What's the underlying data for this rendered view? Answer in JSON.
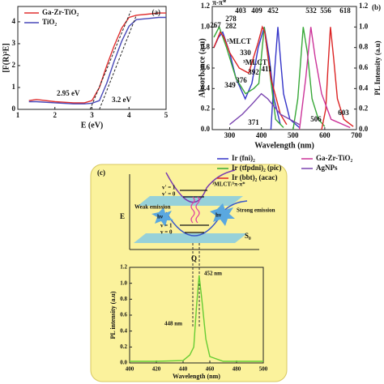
{
  "chart_data": [
    {
      "type": "line",
      "title": "(a)",
      "xlabel": "E (eV)",
      "ylabel": "[F(R)²E]",
      "xlim": [
        1,
        5
      ],
      "ylim": [
        0,
        4.7
      ],
      "xticks": [
        1,
        2,
        3,
        4,
        5
      ],
      "yticks": [
        0,
        1,
        2,
        3,
        4
      ],
      "legend": "upper left",
      "series": [
        {
          "name": "Ga-Zr-TiO₂",
          "color": "#e03030",
          "x": [
            1.3,
            1.5,
            2,
            2.5,
            2.8,
            3.0,
            3.2,
            3.4,
            3.6,
            3.8,
            4.0,
            4.2,
            4.5,
            4.8,
            5.0
          ],
          "values": [
            0.4,
            0.45,
            0.35,
            0.3,
            0.3,
            0.4,
            1.0,
            2.0,
            2.9,
            3.7,
            4.2,
            4.3,
            4.35,
            4.4,
            4.4
          ]
        },
        {
          "name": "TiO₂",
          "color": "#4848b8",
          "x": [
            1.3,
            1.5,
            2,
            2.5,
            2.8,
            3.0,
            3.2,
            3.4,
            3.6,
            3.8,
            4.0,
            4.2,
            4.5,
            4.8,
            5.0
          ],
          "values": [
            0.35,
            0.35,
            0.3,
            0.25,
            0.25,
            0.28,
            0.4,
            1.2,
            2.2,
            3.1,
            3.8,
            4.1,
            4.15,
            4.2,
            4.2
          ]
        }
      ],
      "tangent_lines": [
        {
          "x": [
            2.95,
            4.05
          ],
          "y": [
            0,
            4.5
          ]
        },
        {
          "x": [
            3.2,
            4.2
          ],
          "y": [
            0,
            4.3
          ]
        }
      ],
      "annotations": [
        {
          "text": "2.95 eV",
          "color": "#e03030"
        },
        {
          "text": "3.2 eV",
          "color": "#4848b8"
        }
      ]
    },
    {
      "type": "line",
      "title": "(b)",
      "xlabel": "Wavelength (nm)",
      "ylabel": "Absorbance (a.u)",
      "y2label": "PL Intensity (a.u)",
      "xlim": [
        245,
        700
      ],
      "xticks": [
        300,
        400,
        500,
        600,
        700
      ],
      "ylim": [
        0,
        1.2
      ],
      "yticks": [
        {
          "value": 0,
          "label": "0.0"
        },
        {
          "value": 0.2,
          "label": "0.2"
        },
        {
          "value": 0.4,
          "label": "0.4"
        },
        {
          "value": 0.6,
          "label": "0.6"
        },
        {
          "value": 0.8,
          "label": "0.8"
        },
        {
          "value": 1,
          "label": "1.0"
        },
        {
          "value": 1.2,
          "label": "1.2"
        }
      ],
      "y2lim": [
        0,
        1.2
      ],
      "y2ticks": [
        {
          "value": 0,
          "label": "0.0"
        },
        {
          "value": 0.2,
          "label": "0.2"
        },
        {
          "value": 0.4,
          "label": "0.4"
        },
        {
          "value": 0.6,
          "label": "0.6"
        },
        {
          "value": 0.8,
          "label": "0.8"
        },
        {
          "value": 1,
          "label": "1.0"
        },
        {
          "value": 1.2,
          "label": "1.2"
        }
      ],
      "legend": "below",
      "series": [
        {
          "name": "Ir (fni)₂",
          "color": "#3434c8",
          "absorbance": {
            "x": [
              250,
              265,
              278,
              300,
              320,
              349,
              370,
              390,
              409,
              425,
              440,
              460
            ],
            "values": [
              0.8,
              0.9,
              0.95,
              0.75,
              0.5,
              0.3,
              0.45,
              0.8,
              1.0,
              0.7,
              0.3,
              0.05
            ]
          },
          "pl": {
            "x": [
              430,
              440,
              452,
              460,
              470,
              490,
              520
            ],
            "values": [
              0,
              0.5,
              1.0,
              0.7,
              0.35,
              0.1,
              0.02
            ]
          }
        },
        {
          "name": "Ir (tfpdni)₂ (pic)",
          "color": "#38a838",
          "absorbance": {
            "x": [
              250,
              267,
              290,
              320,
              350,
              376,
              392,
              409,
              425,
              445,
              470
            ],
            "values": [
              0.9,
              1.0,
              0.8,
              0.5,
              0.35,
              0.4,
              0.45,
              1.0,
              0.6,
              0.1,
              0.02
            ]
          },
          "pl": {
            "x": [
              500,
              515,
              532,
              545,
              560,
              580,
              600
            ],
            "values": [
              0,
              0.3,
              1.0,
              0.75,
              0.3,
              0.1,
              0.03
            ]
          }
        },
        {
          "name": "Ir (bbt)₂ (acac)",
          "color": "#dc2424",
          "absorbance": {
            "x": [
              250,
              270,
              282,
              300,
              330,
              360,
              390,
              403,
              411,
              430,
              460,
              480
            ],
            "values": [
              0.8,
              0.95,
              0.9,
              0.75,
              0.6,
              0.55,
              0.85,
              1.0,
              0.95,
              0.5,
              0.15,
              0.05
            ]
          },
          "pl": {
            "x": [
              590,
              603,
              610,
              618,
              628,
              640,
              660,
              690
            ],
            "values": [
              0,
              0.2,
              0.6,
              1.0,
              0.7,
              0.3,
              0.1,
              0.03
            ]
          }
        },
        {
          "name": "Ga-Zr-TiO₂",
          "color": "#cc3399",
          "pl": {
            "x": [
              520,
              540,
              556,
              570,
              590,
              620,
              680
            ],
            "values": [
              0,
              0.5,
              1.0,
              0.7,
              0.35,
              0.1,
              0.02
            ]
          }
        },
        {
          "name": "AgNPs",
          "color": "#7a44b0",
          "absorbance": {
            "x": [
              300,
              340,
              371,
              400,
              420,
              460,
              520
            ],
            "values": [
              0.05,
              0.15,
              0.25,
              0.35,
              0.3,
              0.15,
              0.05
            ]
          }
        }
      ],
      "peaks": [
        {
          "wavelength": 403,
          "color": "#dc2424"
        },
        {
          "wavelength": 409,
          "color": "#38a838"
        },
        {
          "wavelength": 452,
          "color": "#3434c8"
        },
        {
          "wavelength": 278,
          "color": "#3434c8"
        },
        {
          "wavelength": 282,
          "color": "#dc2424"
        },
        {
          "wavelength": 267,
          "color": "#38a838"
        },
        {
          "wavelength": 330,
          "color": "#dc2424"
        },
        {
          "wavelength": 376,
          "color": "#38a838"
        },
        {
          "wavelength": 392,
          "color": "#38a838"
        },
        {
          "wavelength": 349,
          "color": "#3434c8"
        },
        {
          "wavelength": 371,
          "color": "#7a44b0"
        },
        {
          "wavelength": 411,
          "color": "#dc2424"
        },
        {
          "wavelength": 532,
          "color": "#38a838"
        },
        {
          "wavelength": 556,
          "color": "#cc3399"
        },
        {
          "wavelength": 618,
          "color": "#dc2424"
        },
        {
          "wavelength": 506,
          "color": "#38a838"
        },
        {
          "wavelength": 603,
          "color": "#dc2424"
        }
      ],
      "annotations": [
        {
          "text": "π-π*"
        },
        {
          "text": "¹MLCT"
        },
        {
          "text": "³MLCT"
        }
      ]
    },
    {
      "type": "line",
      "xlabel": "Wavelength (nm)",
      "ylabel": "PL intensity (a.u)",
      "xlim": [
        400,
        500
      ],
      "xticks": [
        400,
        420,
        440,
        460,
        480,
        500
      ],
      "ylim": [
        0,
        1.2
      ],
      "yticks": [
        {
          "value": 0,
          "label": "0.0"
        },
        {
          "value": 0.2,
          "label": "0.2"
        },
        {
          "value": 0.4,
          "label": "0.4"
        },
        {
          "value": 0.6,
          "label": "0.6"
        },
        {
          "value": 0.8,
          "label": "0.8"
        },
        {
          "value": 1,
          "label": "1.0"
        },
        {
          "value": 1.2,
          "label": "1.2"
        }
      ],
      "series": [
        {
          "color": "#66cc33",
          "x": [
            400,
            420,
            440,
            445,
            448,
            450,
            452,
            454,
            457,
            460,
            470,
            500
          ],
          "values": [
            0.02,
            0.02,
            0.03,
            0.1,
            0.2,
            0.7,
            1.1,
            0.8,
            0.3,
            0.08,
            0.02,
            0.02
          ]
        }
      ],
      "annotations": [
        {
          "text": "452 nm"
        },
        {
          "text": "448 nm"
        }
      ]
    }
  ],
  "diagram": {
    "label": "(c)",
    "upper_state": "³MLCT/³π-π*",
    "levels": [
      "v' = 1",
      "v' = 0",
      "v = 1",
      "v = 0"
    ],
    "axis": "E",
    "weak": "Weak emission",
    "strong": "Strong emission",
    "photon": "hν",
    "ground": "S₀",
    "coordinate": "Q"
  }
}
